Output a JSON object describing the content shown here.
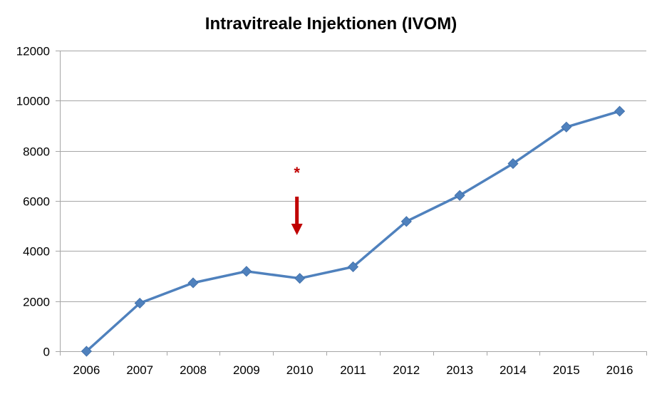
{
  "chart_data": {
    "type": "line",
    "title": "Intravitreale Injektionen (IVOM)",
    "xlabel": "",
    "ylabel": "",
    "categories": [
      "2006",
      "2007",
      "2008",
      "2009",
      "2010",
      "2011",
      "2012",
      "2013",
      "2014",
      "2015",
      "2016"
    ],
    "series": [
      {
        "values": [
          0,
          1920,
          2730,
          3190,
          2910,
          3370,
          5180,
          6220,
          7490,
          8950,
          9580
        ]
      }
    ],
    "ylim": [
      0,
      12000
    ],
    "yticks": [
      0,
      2000,
      4000,
      6000,
      8000,
      10000,
      12000
    ],
    "grid": true,
    "legend": "none",
    "colors": {
      "line": "#4f81bd",
      "marker": "#4f81bd",
      "annotation": "#c00000",
      "grid": "#a6a6a6"
    },
    "annotation": {
      "category": "2010",
      "text": "*",
      "marker": "down-arrow"
    }
  }
}
